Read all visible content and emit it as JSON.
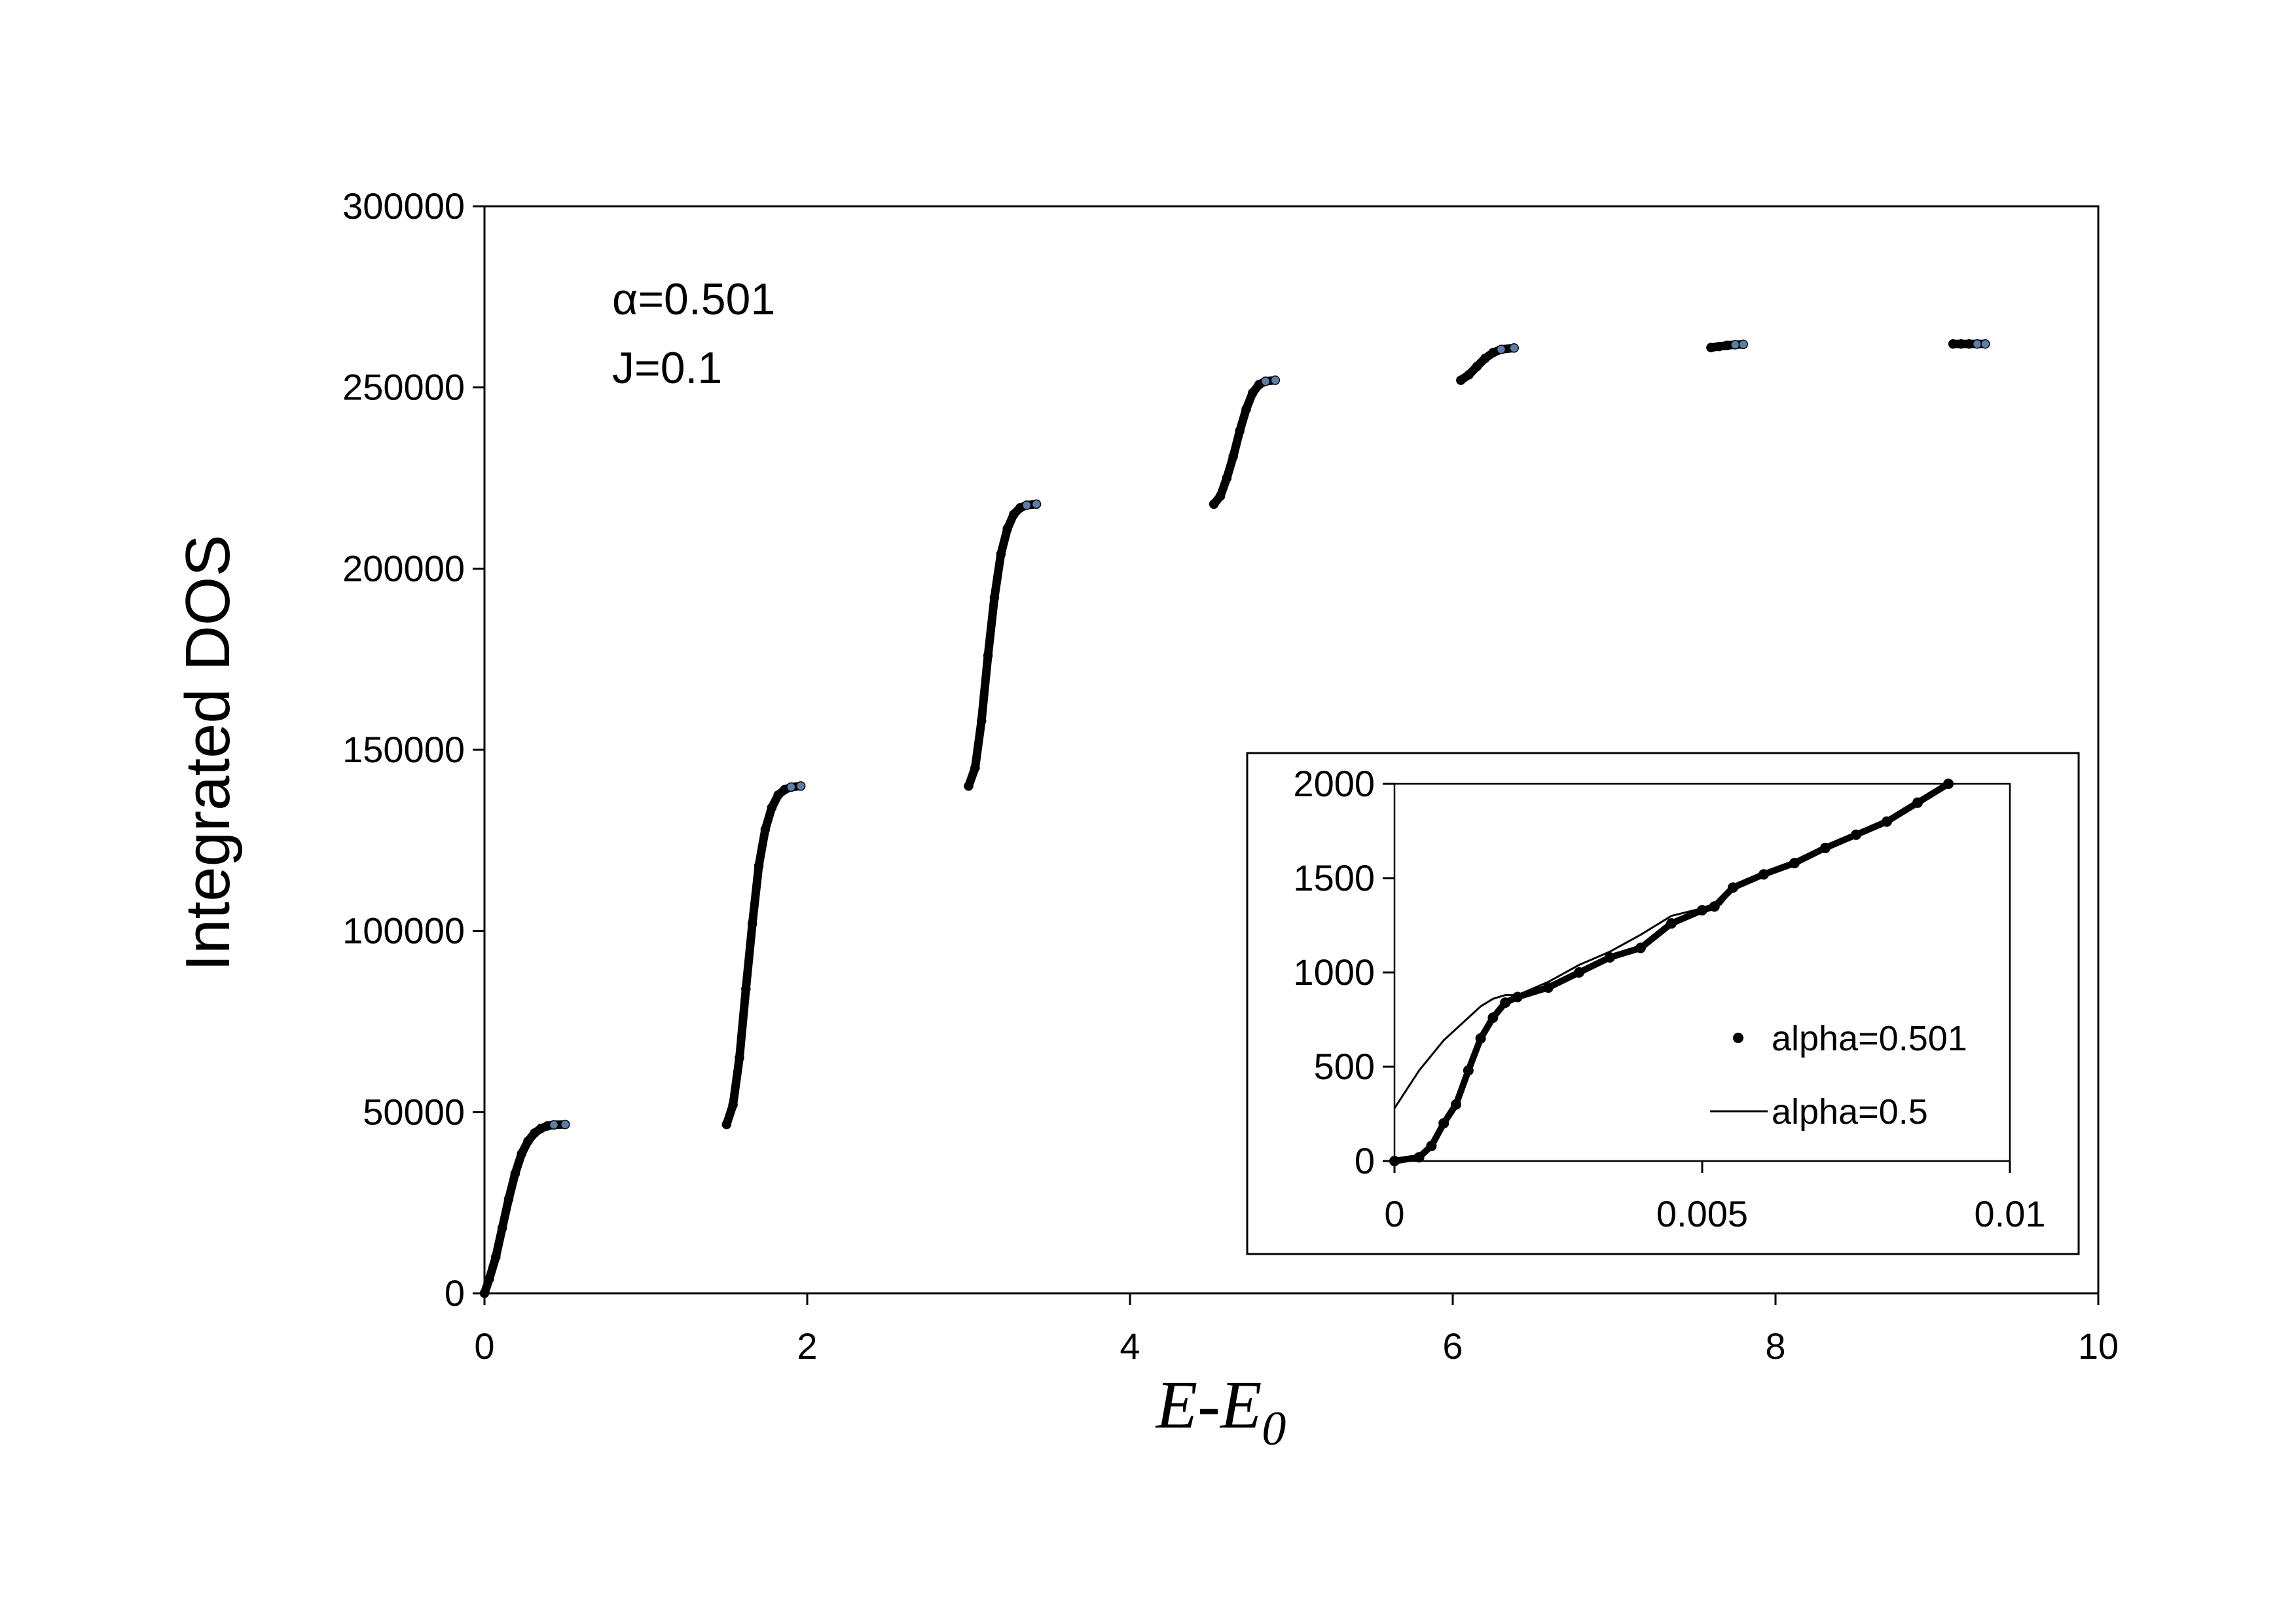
{
  "chart_data": [
    {
      "type": "scatter",
      "title": "",
      "xlabel": {
        "main": "E-E",
        "sub": "0"
      },
      "ylabel": "Integrated DOS",
      "xlim": [
        0,
        10
      ],
      "ylim": [
        0,
        300000
      ],
      "xticks": [
        0,
        2,
        4,
        6,
        8,
        10
      ],
      "yticks": [
        0,
        50000,
        100000,
        150000,
        200000,
        250000,
        300000
      ],
      "grid": false,
      "annotations": [
        "α=0.501",
        "J=0.1"
      ],
      "marker_color": "#000000",
      "segment_end_color": "#5b7fa6",
      "series": [
        {
          "points": [
            [
              0.0,
              0
            ],
            [
              0.03,
              4000
            ],
            [
              0.07,
              10000
            ],
            [
              0.11,
              18000
            ],
            [
              0.15,
              26000
            ],
            [
              0.19,
              33000
            ],
            [
              0.23,
              38500
            ],
            [
              0.27,
              42000
            ],
            [
              0.31,
              44200
            ],
            [
              0.35,
              45500
            ],
            [
              0.39,
              46200
            ],
            [
              0.43,
              46500
            ],
            [
              0.5,
              46600
            ]
          ]
        },
        {
          "points": [
            [
              1.5,
              46600
            ],
            [
              1.54,
              52000
            ],
            [
              1.58,
              65000
            ],
            [
              1.62,
              84000
            ],
            [
              1.66,
              102000
            ],
            [
              1.7,
              118000
            ],
            [
              1.74,
              128000
            ],
            [
              1.78,
              134000
            ],
            [
              1.82,
              137500
            ],
            [
              1.86,
              139000
            ],
            [
              1.9,
              139700
            ],
            [
              1.96,
              140000
            ]
          ]
        },
        {
          "points": [
            [
              3.0,
              140000
            ],
            [
              3.04,
              145000
            ],
            [
              3.08,
              158000
            ],
            [
              3.12,
              176000
            ],
            [
              3.16,
              192000
            ],
            [
              3.2,
              204000
            ],
            [
              3.24,
              211000
            ],
            [
              3.28,
              215000
            ],
            [
              3.32,
              216800
            ],
            [
              3.36,
              217500
            ],
            [
              3.42,
              217800
            ]
          ]
        },
        {
          "points": [
            [
              4.52,
              217800
            ],
            [
              4.56,
              220000
            ],
            [
              4.6,
              225000
            ],
            [
              4.64,
              231000
            ],
            [
              4.68,
              238000
            ],
            [
              4.72,
              244000
            ],
            [
              4.76,
              248500
            ],
            [
              4.8,
              250800
            ],
            [
              4.84,
              251700
            ],
            [
              4.9,
              252000
            ]
          ]
        },
        {
          "points": [
            [
              6.05,
              252000
            ],
            [
              6.1,
              253500
            ],
            [
              6.15,
              255800
            ],
            [
              6.2,
              258000
            ],
            [
              6.25,
              259600
            ],
            [
              6.3,
              260500
            ],
            [
              6.38,
              260900
            ]
          ]
        },
        {
          "points": [
            [
              7.6,
              261000
            ],
            [
              7.65,
              261300
            ],
            [
              7.7,
              261600
            ],
            [
              7.75,
              261800
            ],
            [
              7.8,
              261900
            ]
          ]
        },
        {
          "points": [
            [
              9.1,
              262000
            ],
            [
              9.15,
              262000
            ],
            [
              9.2,
              262000
            ],
            [
              9.25,
              262000
            ],
            [
              9.3,
              262000
            ]
          ]
        }
      ]
    },
    {
      "type": "scatter",
      "title": "",
      "xlabel": "",
      "ylabel": "",
      "xlim": [
        0,
        0.01
      ],
      "ylim": [
        0,
        2000
      ],
      "xticks": [
        0,
        0.005,
        0.01
      ],
      "yticks": [
        0,
        500,
        1000,
        1500,
        2000
      ],
      "grid": false,
      "legend_position": "bottom-right",
      "series": [
        {
          "name": "alpha=0.501",
          "style": "markers",
          "points": [
            [
              0.0,
              0
            ],
            [
              0.0004,
              20
            ],
            [
              0.0006,
              80
            ],
            [
              0.0008,
              200
            ],
            [
              0.001,
              300
            ],
            [
              0.0012,
              480
            ],
            [
              0.0014,
              650
            ],
            [
              0.0016,
              760
            ],
            [
              0.0018,
              840
            ],
            [
              0.002,
              870
            ],
            [
              0.0025,
              920
            ],
            [
              0.003,
              1000
            ],
            [
              0.0035,
              1080
            ],
            [
              0.004,
              1130
            ],
            [
              0.0045,
              1260
            ],
            [
              0.005,
              1330
            ],
            [
              0.0052,
              1350
            ],
            [
              0.0055,
              1450
            ],
            [
              0.006,
              1520
            ],
            [
              0.0065,
              1580
            ],
            [
              0.007,
              1660
            ],
            [
              0.0075,
              1730
            ],
            [
              0.008,
              1800
            ],
            [
              0.0085,
              1900
            ],
            [
              0.009,
              2000
            ]
          ]
        },
        {
          "name": "alpha=0.5",
          "style": "line",
          "points": [
            [
              0.0,
              280
            ],
            [
              0.0002,
              380
            ],
            [
              0.0004,
              480
            ],
            [
              0.0006,
              560
            ],
            [
              0.0008,
              640
            ],
            [
              0.001,
              700
            ],
            [
              0.0012,
              760
            ],
            [
              0.0014,
              820
            ],
            [
              0.0016,
              860
            ],
            [
              0.0018,
              880
            ],
            [
              0.002,
              880
            ],
            [
              0.0025,
              950
            ],
            [
              0.003,
              1040
            ],
            [
              0.0035,
              1110
            ],
            [
              0.004,
              1200
            ],
            [
              0.0045,
              1300
            ],
            [
              0.005,
              1340
            ],
            [
              0.0053,
              1360
            ],
            [
              0.0055,
              1440
            ],
            [
              0.006,
              1510
            ],
            [
              0.0065,
              1580
            ],
            [
              0.007,
              1660
            ],
            [
              0.0075,
              1730
            ],
            [
              0.008,
              1800
            ],
            [
              0.0085,
              1900
            ],
            [
              0.009,
              2000
            ]
          ]
        }
      ]
    }
  ]
}
